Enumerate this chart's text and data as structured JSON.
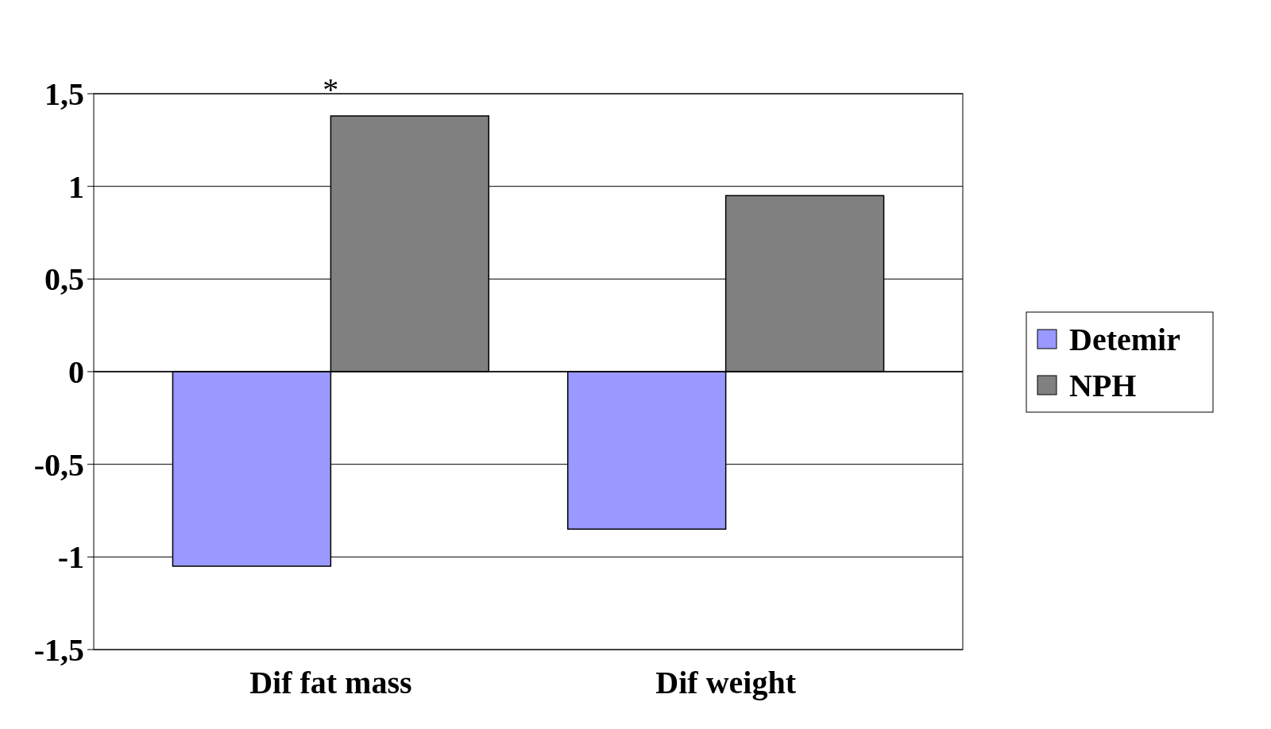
{
  "chart_data": {
    "type": "bar",
    "categories": [
      "Dif fat mass",
      "Dif weight"
    ],
    "series": [
      {
        "name": "Detemir",
        "color": "#9999ff",
        "values": [
          -1.05,
          -0.85
        ]
      },
      {
        "name": "NPH",
        "color": "#808080",
        "values": [
          1.38,
          0.95
        ]
      }
    ],
    "ylim": [
      -1.5,
      1.5
    ],
    "yticks": [
      {
        "value": -1.5,
        "label": "-1,5"
      },
      {
        "value": -1,
        "label": "-1"
      },
      {
        "value": -0.5,
        "label": "-0,5"
      },
      {
        "value": 0,
        "label": "0"
      },
      {
        "value": 0.5,
        "label": "0,5"
      },
      {
        "value": 1,
        "label": "1"
      },
      {
        "value": 1.5,
        "label": "1,5"
      }
    ],
    "grid": "y",
    "legend": "right",
    "annotations": [
      {
        "text": "*",
        "x": "Dif fat mass",
        "y": 1.38
      }
    ]
  }
}
